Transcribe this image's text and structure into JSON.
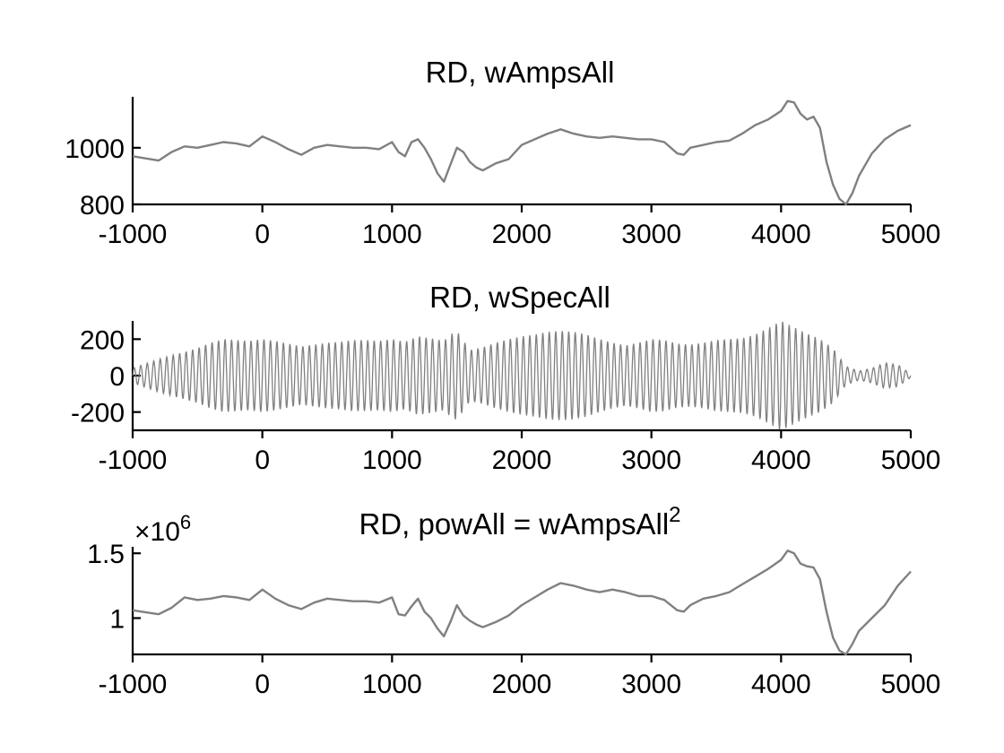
{
  "chart_data": [
    {
      "type": "line",
      "title": "RD, wAmpsAll",
      "xlim": [
        -1000,
        5000
      ],
      "ylim": [
        800,
        1180
      ],
      "xticks": [
        "-1000",
        "0",
        "1000",
        "2000",
        "3000",
        "4000",
        "5000"
      ],
      "yticks": [
        "800",
        "1000"
      ],
      "color": "#808080",
      "series": [
        {
          "x": [
            -1000,
            -800,
            -700,
            -600,
            -500,
            -400,
            -300,
            -200,
            -100,
            0,
            100,
            200,
            300,
            400,
            500,
            600,
            700,
            800,
            900,
            1000,
            1050,
            1100,
            1150,
            1200,
            1250,
            1300,
            1350,
            1400,
            1450,
            1500,
            1550,
            1600,
            1650,
            1700,
            1800,
            1900,
            2000,
            2100,
            2200,
            2300,
            2400,
            2500,
            2600,
            2700,
            2800,
            2900,
            3000,
            3100,
            3200,
            3250,
            3300,
            3400,
            3500,
            3600,
            3700,
            3800,
            3900,
            4000,
            4050,
            4100,
            4150,
            4200,
            4250,
            4300,
            4350,
            4400,
            4450,
            4500,
            4550,
            4600,
            4700,
            4800,
            4900,
            5000
          ],
          "y": [
            970,
            955,
            985,
            1005,
            1000,
            1010,
            1020,
            1015,
            1005,
            1040,
            1020,
            995,
            975,
            1000,
            1010,
            1005,
            1000,
            1000,
            995,
            1020,
            985,
            970,
            1020,
            1030,
            1000,
            960,
            910,
            880,
            940,
            1000,
            985,
            950,
            930,
            920,
            945,
            960,
            1010,
            1030,
            1050,
            1065,
            1050,
            1040,
            1035,
            1040,
            1035,
            1030,
            1030,
            1020,
            980,
            975,
            1000,
            1010,
            1020,
            1025,
            1050,
            1080,
            1100,
            1130,
            1165,
            1160,
            1120,
            1100,
            1110,
            1070,
            950,
            870,
            820,
            800,
            840,
            900,
            980,
            1030,
            1060,
            1080
          ]
        }
      ]
    },
    {
      "type": "line",
      "title": "RD, wSpecAll",
      "xlim": [
        -1000,
        5000
      ],
      "ylim": [
        -300,
        300
      ],
      "xticks": [
        "-1000",
        "0",
        "1000",
        "2000",
        "3000",
        "4000",
        "5000"
      ],
      "yticks": [
        "-200",
        "0",
        "200"
      ],
      "color": "#808080",
      "oscillation_period": 50,
      "envelope": {
        "x": [
          -1000,
          -800,
          -700,
          -600,
          -500,
          -400,
          -300,
          -200,
          -100,
          0,
          100,
          200,
          300,
          400,
          500,
          600,
          700,
          800,
          900,
          1000,
          1100,
          1200,
          1300,
          1400,
          1450,
          1500,
          1600,
          1700,
          1800,
          1900,
          2000,
          2100,
          2200,
          2300,
          2400,
          2500,
          2600,
          2700,
          2800,
          2900,
          3000,
          3100,
          3200,
          3300,
          3400,
          3500,
          3600,
          3700,
          3800,
          3900,
          4000,
          4100,
          4200,
          4300,
          4400,
          4500,
          4600,
          4700,
          4800,
          4900,
          5000
        ],
        "y": [
          40,
          90,
          110,
          130,
          150,
          180,
          200,
          195,
          190,
          200,
          190,
          175,
          160,
          170,
          180,
          185,
          195,
          195,
          190,
          200,
          185,
          215,
          205,
          190,
          225,
          245,
          140,
          155,
          180,
          200,
          215,
          225,
          240,
          245,
          240,
          225,
          200,
          180,
          165,
          180,
          200,
          195,
          175,
          170,
          180,
          195,
          200,
          205,
          225,
          260,
          300,
          265,
          230,
          200,
          150,
          50,
          25,
          40,
          70,
          60,
          10
        ]
      }
    },
    {
      "type": "line",
      "title": "RD, powAll = wAmpsAll",
      "title_superscript": "2",
      "scale_label": "×10",
      "scale_exponent": "6",
      "xlim": [
        -1000,
        5000
      ],
      "ylim": [
        0.72,
        1.55
      ],
      "xticks": [
        "-1000",
        "0",
        "1000",
        "2000",
        "3000",
        "4000",
        "5000"
      ],
      "yticks": [
        "1",
        "1.5"
      ],
      "color": "#808080",
      "series": [
        {
          "x": [
            -1000,
            -800,
            -700,
            -600,
            -500,
            -400,
            -300,
            -200,
            -100,
            0,
            100,
            200,
            300,
            400,
            500,
            600,
            700,
            800,
            900,
            1000,
            1050,
            1100,
            1150,
            1200,
            1250,
            1300,
            1350,
            1400,
            1450,
            1500,
            1550,
            1600,
            1650,
            1700,
            1800,
            1900,
            2000,
            2100,
            2200,
            2300,
            2400,
            2500,
            2600,
            2700,
            2800,
            2900,
            3000,
            3100,
            3200,
            3250,
            3300,
            3400,
            3500,
            3600,
            3700,
            3800,
            3900,
            4000,
            4050,
            4100,
            4150,
            4200,
            4250,
            4300,
            4350,
            4400,
            4450,
            4500,
            4550,
            4600,
            4700,
            4800,
            4900,
            5000
          ],
          "y": [
            1.06,
            1.03,
            1.08,
            1.16,
            1.14,
            1.15,
            1.17,
            1.16,
            1.14,
            1.22,
            1.15,
            1.1,
            1.07,
            1.12,
            1.15,
            1.14,
            1.13,
            1.13,
            1.12,
            1.16,
            1.03,
            1.02,
            1.09,
            1.15,
            1.05,
            1.0,
            0.92,
            0.86,
            0.97,
            1.1,
            1.02,
            0.98,
            0.95,
            0.93,
            0.97,
            1.02,
            1.1,
            1.16,
            1.22,
            1.27,
            1.25,
            1.22,
            1.2,
            1.22,
            1.2,
            1.17,
            1.17,
            1.14,
            1.06,
            1.05,
            1.1,
            1.15,
            1.17,
            1.2,
            1.26,
            1.32,
            1.38,
            1.45,
            1.52,
            1.5,
            1.42,
            1.4,
            1.39,
            1.3,
            1.05,
            0.85,
            0.75,
            0.72,
            0.8,
            0.9,
            1.0,
            1.1,
            1.25,
            1.36
          ]
        }
      ]
    }
  ]
}
